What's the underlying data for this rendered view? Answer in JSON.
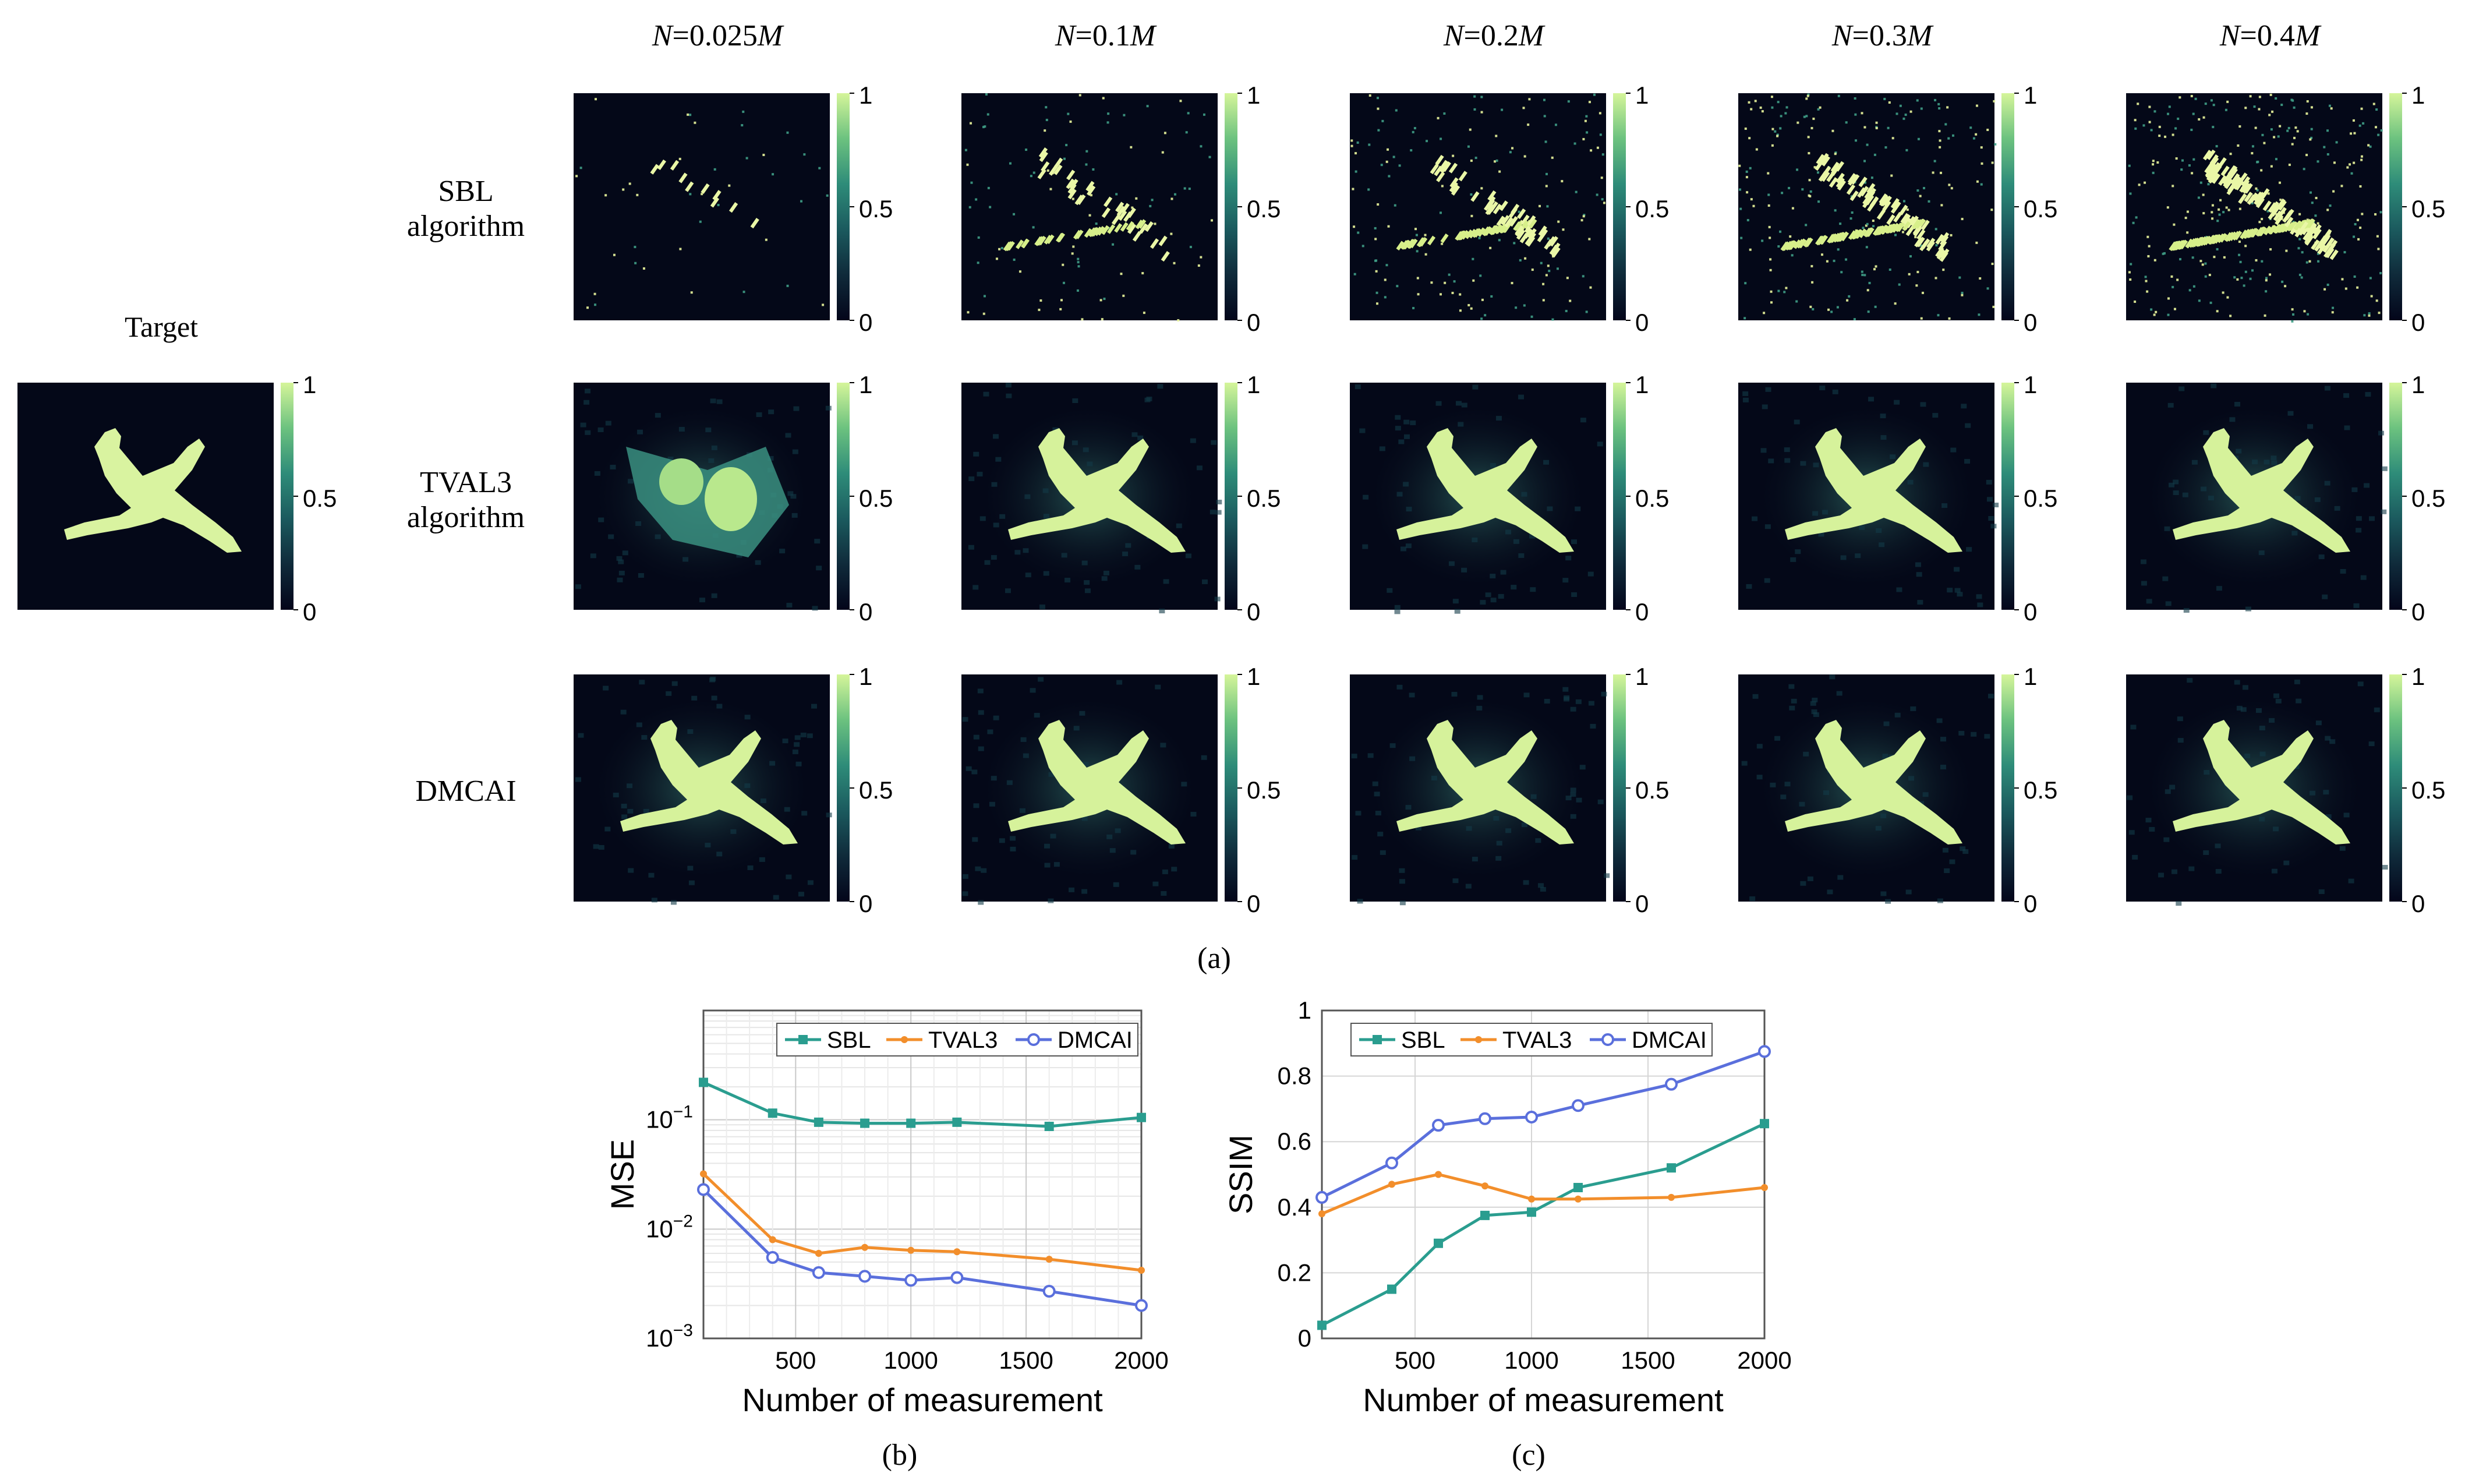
{
  "figure": {
    "target_label": "Target",
    "column_headers": [
      {
        "sym": "N",
        "mid": "=0.025",
        "tail": "M"
      },
      {
        "sym": "N",
        "mid": "=0.1",
        "tail": "M"
      },
      {
        "sym": "N",
        "mid": "=0.2",
        "tail": "M"
      },
      {
        "sym": "N",
        "mid": "=0.3",
        "tail": "M"
      },
      {
        "sym": "N",
        "mid": "=0.4",
        "tail": "M"
      }
    ],
    "row_labels": [
      [
        "SBL",
        "algorithm"
      ],
      [
        "TVAL3",
        "algorithm"
      ],
      [
        "DMCAI"
      ]
    ],
    "colorbar_ticks": [
      "1",
      "0.5",
      "0"
    ],
    "panel_labels": {
      "a": "(a)",
      "b": "(b)",
      "c": "(c)"
    },
    "colormap": [
      "#03051a",
      "#0f2a3a",
      "#1b5a5e",
      "#2e8c79",
      "#6cc27f",
      "#d5f59a"
    ]
  },
  "chart_data": [
    {
      "type": "line",
      "yscale": "log",
      "xlabel": "Number of measurement",
      "ylabel": "MSE",
      "xlim": [
        100,
        2000
      ],
      "ylim": [
        0.001,
        1
      ],
      "xticks": [
        500,
        1000,
        1500,
        2000
      ],
      "ytick_labels": [
        {
          "base": "10",
          "exp": "−1"
        },
        {
          "base": "10",
          "exp": "−2"
        },
        {
          "base": "10",
          "exp": "−3"
        }
      ],
      "x": [
        100,
        400,
        600,
        800,
        1000,
        1200,
        1600,
        2000
      ],
      "series": [
        {
          "name": "SBL",
          "color": "#2a9d8f",
          "marker": "square",
          "values": [
            0.22,
            0.115,
            0.095,
            0.093,
            0.093,
            0.095,
            0.087,
            0.105
          ]
        },
        {
          "name": "TVAL3",
          "color": "#f28e2b",
          "marker": "dot",
          "values": [
            0.032,
            0.008,
            0.006,
            0.0068,
            0.0064,
            0.0062,
            0.0053,
            0.0042
          ]
        },
        {
          "name": "DMCAI",
          "color": "#5a6fdc",
          "marker": "circle",
          "values": [
            0.023,
            0.0055,
            0.004,
            0.0037,
            0.0034,
            0.0036,
            0.0027,
            0.002
          ]
        }
      ],
      "legend_position": "top"
    },
    {
      "type": "line",
      "xlabel": "Number of measurement",
      "ylabel": "SSIM",
      "xlim": [
        100,
        2000
      ],
      "ylim": [
        0,
        1
      ],
      "xticks": [
        500,
        1000,
        1500,
        2000
      ],
      "yticks": [
        0,
        0.2,
        0.4,
        0.6,
        0.8,
        1
      ],
      "ytick_labels": [
        "0",
        "0.2",
        "0.4",
        "0.6",
        "0.8",
        "1"
      ],
      "x": [
        100,
        400,
        600,
        800,
        1000,
        1200,
        1600,
        2000
      ],
      "series": [
        {
          "name": "SBL",
          "color": "#2a9d8f",
          "marker": "square",
          "values": [
            0.04,
            0.15,
            0.29,
            0.375,
            0.385,
            0.46,
            0.52,
            0.655
          ]
        },
        {
          "name": "TVAL3",
          "color": "#f28e2b",
          "marker": "dot",
          "values": [
            0.38,
            0.47,
            0.5,
            0.465,
            0.425,
            0.425,
            0.43,
            0.46
          ]
        },
        {
          "name": "DMCAI",
          "color": "#5a6fdc",
          "marker": "circle",
          "values": [
            0.43,
            0.535,
            0.65,
            0.67,
            0.675,
            0.71,
            0.775,
            0.875
          ]
        }
      ],
      "legend_position": "top"
    }
  ]
}
